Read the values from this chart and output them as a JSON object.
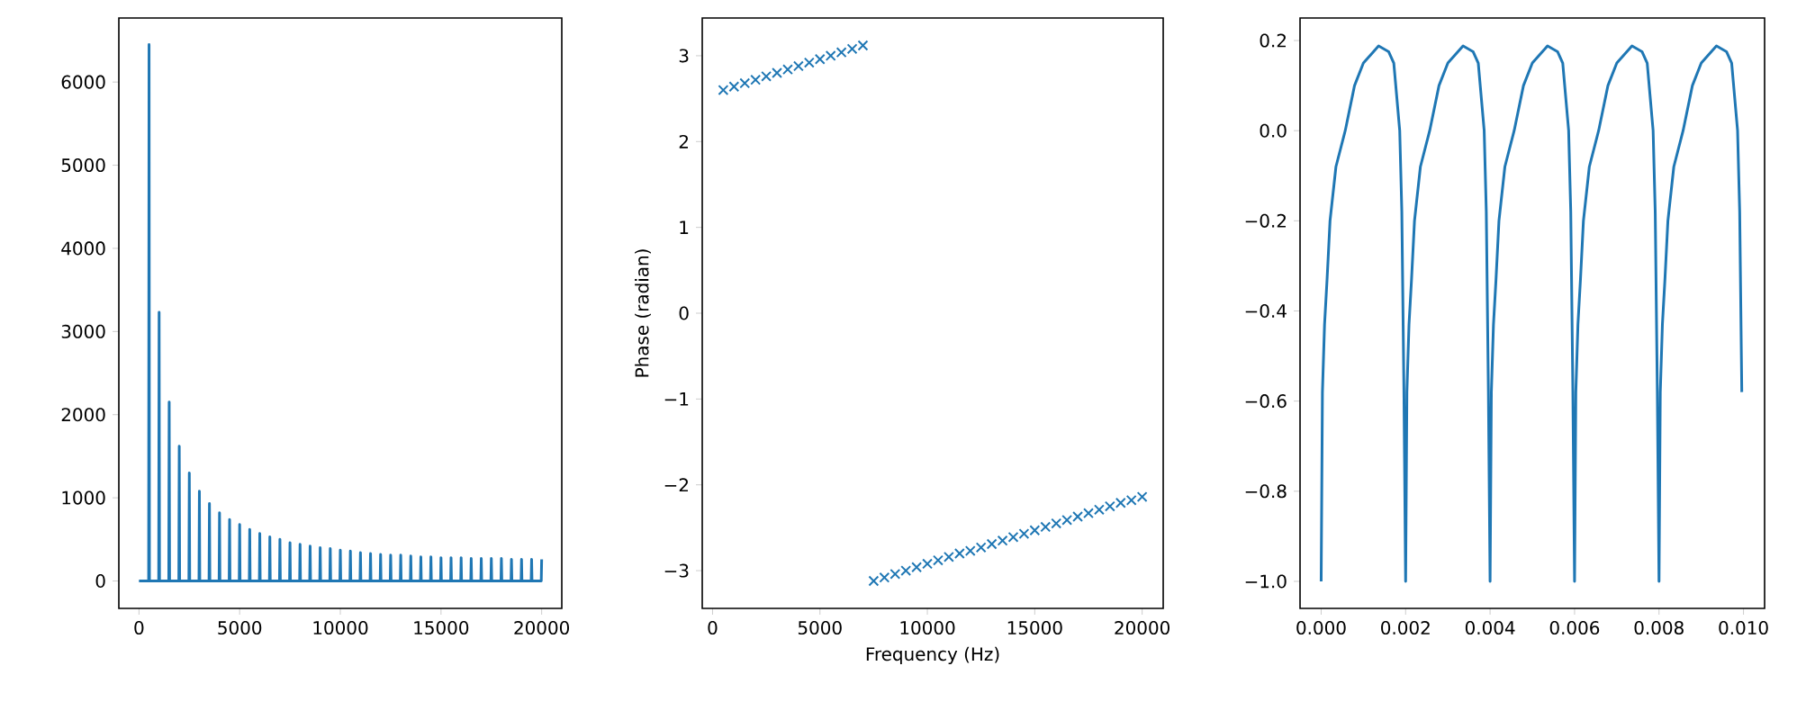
{
  "chart_data": [
    {
      "type": "line",
      "color": "#1f77b4",
      "grid": false,
      "x": [
        0,
        480,
        500,
        520,
        980,
        1000,
        1020,
        1480,
        1500,
        1520,
        1980,
        2000,
        2020,
        2480,
        2500,
        2520,
        2980,
        3000,
        3020,
        3480,
        3500,
        3520,
        3980,
        4000,
        4020,
        4480,
        4500,
        4520,
        4980,
        5000,
        5020,
        5480,
        5500,
        5520,
        5980,
        6000,
        6020,
        6480,
        6500,
        6520,
        6980,
        7000,
        7020,
        7480,
        7500,
        7520,
        7980,
        8000,
        8020,
        8480,
        8500,
        8520,
        8980,
        9000,
        9020,
        9480,
        9500,
        9520,
        9980,
        10000,
        10020,
        10480,
        10500,
        10520,
        10980,
        11000,
        11020,
        11480,
        11500,
        11520,
        11980,
        12000,
        12020,
        12480,
        12500,
        12520,
        12980,
        13000,
        13020,
        13480,
        13500,
        13520,
        13980,
        14000,
        14020,
        14480,
        14500,
        14520,
        14980,
        15000,
        15020,
        15480,
        15500,
        15520,
        15980,
        16000,
        16020,
        16480,
        16500,
        16520,
        16980,
        17000,
        17020,
        17480,
        17500,
        17520,
        17980,
        18000,
        18020,
        18480,
        18500,
        18520,
        18980,
        19000,
        19020,
        19480,
        19500,
        19520,
        19980,
        20000
      ],
      "values": [
        0,
        0,
        6450,
        0,
        0,
        3230,
        0,
        0,
        2150,
        0,
        0,
        1620,
        0,
        0,
        1300,
        0,
        0,
        1080,
        0,
        0,
        930,
        0,
        0,
        820,
        0,
        0,
        740,
        0,
        0,
        680,
        0,
        0,
        620,
        0,
        0,
        570,
        0,
        0,
        530,
        0,
        0,
        500,
        0,
        0,
        460,
        0,
        0,
        440,
        0,
        0,
        420,
        0,
        0,
        400,
        0,
        0,
        390,
        0,
        0,
        370,
        0,
        0,
        360,
        0,
        0,
        340,
        0,
        0,
        330,
        0,
        0,
        320,
        0,
        0,
        310,
        0,
        0,
        310,
        0,
        0,
        300,
        0,
        0,
        290,
        0,
        0,
        290,
        0,
        0,
        280,
        0,
        0,
        280,
        0,
        0,
        280,
        0,
        0,
        270,
        0,
        0,
        270,
        0,
        0,
        270,
        0,
        0,
        270,
        0,
        0,
        260,
        0,
        0,
        260,
        0,
        0,
        260,
        0,
        0,
        260
      ],
      "xlim": [
        -1000,
        21000
      ],
      "ylim": [
        -330,
        6770
      ],
      "xticks": [
        0,
        5000,
        10000,
        15000,
        20000
      ],
      "yticks": [
        0,
        1000,
        2000,
        3000,
        4000,
        5000,
        6000
      ]
    },
    {
      "type": "scatter",
      "color": "#1f77b4",
      "marker": "cross",
      "grid": false,
      "xlabel": "Frequency (Hz)",
      "ylabel": "Phase (radian)",
      "x": [
        500,
        1000,
        1500,
        2000,
        2500,
        3000,
        3500,
        4000,
        4500,
        5000,
        5500,
        6000,
        6500,
        7000,
        7500,
        8000,
        8500,
        9000,
        9500,
        10000,
        10500,
        11000,
        11500,
        12000,
        12500,
        13000,
        13500,
        14000,
        14500,
        15000,
        15500,
        16000,
        16500,
        17000,
        17500,
        18000,
        18500,
        19000,
        19500,
        20000
      ],
      "values": [
        2.6,
        2.64,
        2.68,
        2.72,
        2.76,
        2.8,
        2.84,
        2.88,
        2.92,
        2.96,
        3.0,
        3.04,
        3.08,
        3.12,
        -3.12,
        -3.08,
        -3.04,
        -3.0,
        -2.96,
        -2.92,
        -2.88,
        -2.84,
        -2.8,
        -2.77,
        -2.73,
        -2.69,
        -2.65,
        -2.61,
        -2.57,
        -2.53,
        -2.49,
        -2.45,
        -2.41,
        -2.37,
        -2.33,
        -2.29,
        -2.25,
        -2.21,
        -2.18,
        -2.14
      ],
      "xlim": [
        -480,
        20980
      ],
      "ylim": [
        -3.44,
        3.44
      ],
      "xticks": [
        0,
        5000,
        10000,
        15000,
        20000
      ],
      "yticks": [
        {
          "value": -3,
          "label": "−3"
        },
        {
          "value": -2,
          "label": "−2"
        },
        {
          "value": -1,
          "label": "−1"
        },
        0,
        1,
        2,
        3
      ]
    },
    {
      "type": "line",
      "color": "#1f77b4",
      "grid": false,
      "x": [
        0,
        3e-05,
        8e-05,
        0.00014,
        0.00021,
        0.00035,
        0.00057,
        0.00079,
        0.001,
        0.00136,
        0.0016,
        0.00172,
        0.00186,
        0.00191,
        0.00196,
        0.002,
        0.00203,
        0.00208,
        0.00214,
        0.00221,
        0.00235,
        0.00257,
        0.00279,
        0.003,
        0.00336,
        0.0036,
        0.00372,
        0.00386,
        0.00391,
        0.00396,
        0.004,
        0.00403,
        0.00408,
        0.00414,
        0.00421,
        0.00435,
        0.00457,
        0.00479,
        0.005,
        0.00536,
        0.0056,
        0.00572,
        0.00586,
        0.00591,
        0.00596,
        0.006,
        0.00603,
        0.00608,
        0.00614,
        0.00621,
        0.00635,
        0.00657,
        0.00679,
        0.007,
        0.00736,
        0.0076,
        0.00772,
        0.00786,
        0.00791,
        0.00796,
        0.008,
        0.00803,
        0.00808,
        0.00814,
        0.00821,
        0.00835,
        0.00857,
        0.00879,
        0.009,
        0.00936,
        0.0096,
        0.00972,
        0.00986,
        0.00991,
        0.00996
      ],
      "values": [
        -1,
        -0.58,
        -0.43,
        -0.33,
        -0.2,
        -0.08,
        0,
        0.1,
        0.15,
        0.188,
        0.175,
        0.15,
        0,
        -0.18,
        -0.58,
        -1,
        -0.58,
        -0.43,
        -0.33,
        -0.2,
        -0.08,
        0,
        0.1,
        0.15,
        0.188,
        0.175,
        0.15,
        0,
        -0.18,
        -0.58,
        -1,
        -0.58,
        -0.43,
        -0.33,
        -0.2,
        -0.08,
        0,
        0.1,
        0.15,
        0.188,
        0.175,
        0.15,
        0,
        -0.18,
        -0.58,
        -1,
        -0.58,
        -0.43,
        -0.33,
        -0.2,
        -0.08,
        0,
        0.1,
        0.15,
        0.188,
        0.175,
        0.15,
        0,
        -0.18,
        -0.58,
        -1,
        -0.58,
        -0.43,
        -0.33,
        -0.2,
        -0.08,
        0,
        0.1,
        0.15,
        0.188,
        0.175,
        0.15,
        0,
        -0.18,
        -0.58
      ],
      "xlim": [
        -0.0005,
        0.0105
      ],
      "ylim": [
        -1.06,
        0.25
      ],
      "xticks": [
        {
          "value": 0,
          "label": "0.000"
        },
        {
          "value": 0.002,
          "label": "0.002"
        },
        {
          "value": 0.004,
          "label": "0.004"
        },
        {
          "value": 0.006,
          "label": "0.006"
        },
        {
          "value": 0.008,
          "label": "0.008"
        },
        {
          "value": 0.01,
          "label": "0.010"
        }
      ],
      "yticks": [
        {
          "value": -1,
          "label": "−1.0"
        },
        {
          "value": -0.8,
          "label": "−0.8"
        },
        {
          "value": -0.6,
          "label": "−0.6"
        },
        {
          "value": -0.4,
          "label": "−0.4"
        },
        {
          "value": -0.2,
          "label": "−0.2"
        },
        {
          "value": 0,
          "label": "0.0"
        },
        {
          "value": 0.2,
          "label": "0.2"
        }
      ]
    }
  ]
}
